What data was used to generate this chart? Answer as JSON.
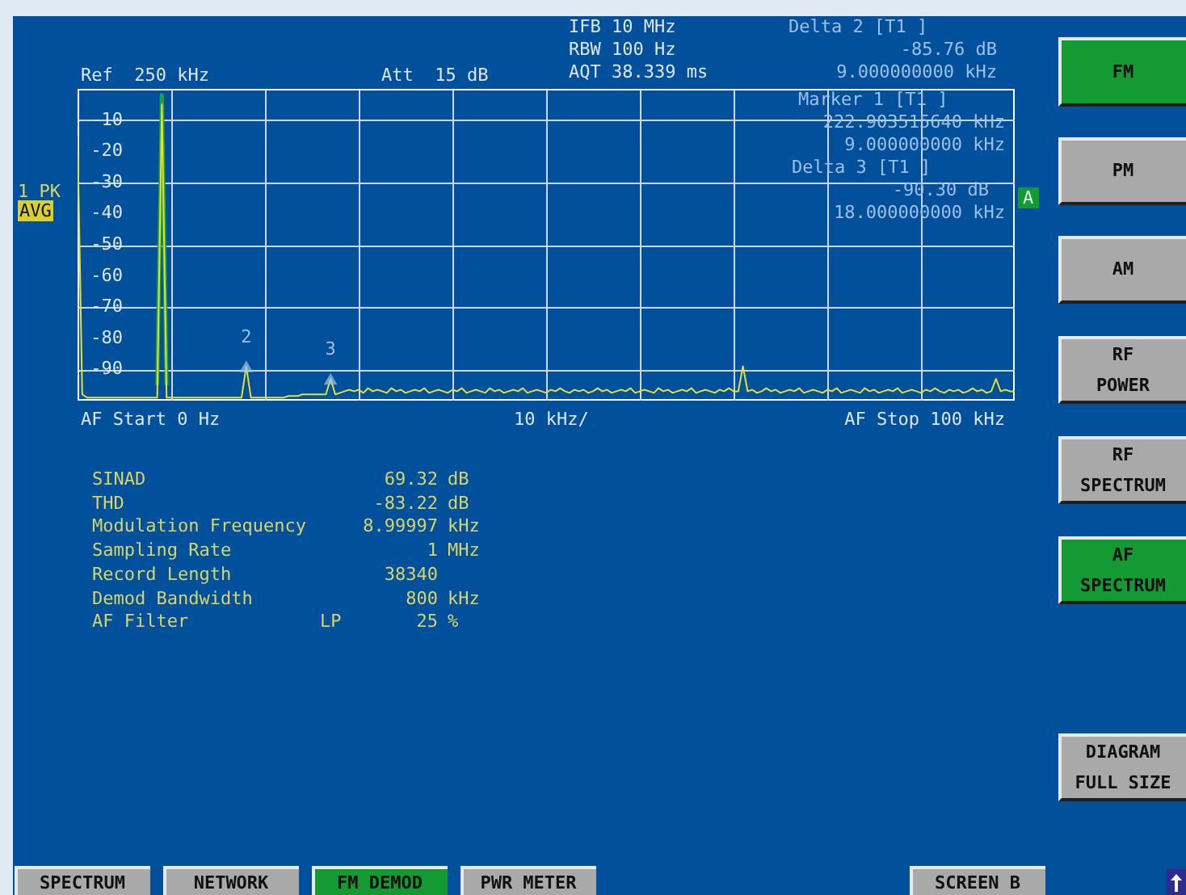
{
  "chart_data": {
    "type": "line",
    "categories": [
      null,
      null,
      null,
      null,
      null,
      null,
      null,
      null,
      null,
      null,
      null,
      null,
      null,
      null,
      null,
      null,
      null,
      null,
      null,
      null,
      null,
      null,
      null,
      null,
      null,
      null,
      null,
      null,
      null,
      null,
      null,
      null,
      null,
      null,
      null,
      null,
      null,
      null,
      null,
      null,
      null,
      null,
      null,
      null,
      null,
      null,
      null,
      null,
      null,
      null,
      null,
      null,
      null,
      null,
      null,
      null,
      null,
      null,
      null,
      null,
      null,
      null,
      null,
      null,
      null,
      null,
      null,
      null,
      null,
      null,
      null,
      null,
      null,
      null,
      null,
      null,
      null,
      null,
      null,
      null,
      null,
      null,
      null,
      null,
      null,
      null,
      null,
      null,
      null,
      null,
      null,
      null,
      null,
      null,
      null,
      null,
      null,
      null,
      null,
      null,
      null,
      null,
      null,
      null,
      null,
      null,
      null,
      null,
      null,
      null,
      null,
      null,
      null,
      null,
      null,
      null,
      null,
      null,
      null,
      null,
      null,
      null,
      null,
      null,
      null,
      null,
      null,
      null,
      null,
      null,
      null,
      null,
      null,
      null,
      null,
      null,
      null,
      null,
      null,
      null,
      null,
      null,
      null,
      null,
      null,
      null,
      null,
      null,
      null,
      null,
      null,
      null,
      null,
      null,
      null,
      null,
      null,
      null,
      null,
      null,
      null,
      null,
      null,
      null,
      null,
      null,
      null,
      null,
      null,
      null,
      null,
      null,
      null,
      null,
      null,
      null,
      null,
      null,
      null,
      null,
      null,
      null,
      null,
      null,
      null,
      null,
      null,
      null,
      null,
      null,
      null,
      null,
      null,
      null,
      null,
      null,
      null,
      null,
      null,
      null,
      null
    ],
    "ylim": [
      -100,
      0
    ],
    "yticks": [
      -10,
      -20,
      -30,
      -40,
      -50,
      -60,
      -70,
      -80,
      -90
    ],
    "grid": true,
    "tick_labels": "y",
    "line_style": "solid",
    "marker": "none",
    "series": [
      {
        "color": "#20a040",
        "values": [
          null,
          null,
          null,
          null,
          null,
          null,
          null,
          null,
          null,
          null,
          null,
          null,
          null,
          null,
          null,
          null,
          null,
          -95,
          -2,
          -95,
          null,
          null,
          null,
          null,
          null,
          null,
          null,
          null,
          null,
          null,
          null,
          null,
          null,
          null,
          null,
          null,
          null,
          null,
          null,
          null,
          null,
          null,
          null,
          null,
          null,
          null,
          null,
          null,
          null,
          null,
          null,
          null,
          null,
          null,
          null,
          null,
          null,
          null,
          null,
          null,
          null,
          null,
          null,
          null,
          null,
          null,
          null,
          null,
          null,
          null,
          null,
          null,
          null,
          null,
          null,
          null,
          null,
          null,
          null,
          null,
          null,
          null,
          null,
          null,
          null,
          null,
          null,
          null,
          null,
          null,
          null,
          null,
          null,
          null,
          null,
          null,
          null,
          null,
          null,
          null,
          null,
          null,
          null,
          null,
          null,
          null,
          null,
          null,
          null,
          null,
          null,
          null,
          null,
          null,
          null,
          null,
          null,
          null,
          null,
          null,
          null,
          null,
          null,
          null,
          null,
          null,
          null,
          null,
          null,
          null,
          null,
          null,
          null,
          null,
          null,
          null,
          null,
          null,
          null,
          null,
          null,
          null,
          null,
          null,
          null,
          null,
          null,
          null,
          null,
          null,
          null,
          null,
          null,
          null,
          null,
          null,
          null,
          null,
          null,
          null,
          null,
          null,
          null,
          null,
          null,
          null,
          null,
          null,
          null,
          null,
          null,
          null,
          null,
          null,
          null,
          null,
          null,
          null,
          null,
          null,
          null,
          null,
          null,
          null,
          null,
          null,
          null,
          null,
          null,
          null,
          null,
          null,
          null,
          null,
          null,
          null,
          null,
          null,
          null,
          null,
          null
        ]
      },
      {
        "color": "#e8e030",
        "values": [
          -15,
          -98,
          -99,
          -99,
          -99,
          -99,
          -99,
          -99,
          -99,
          -99,
          -99,
          -99,
          -99,
          -99,
          -99,
          -99,
          -99,
          -99,
          -5,
          -99,
          -99,
          -99,
          -99,
          -99,
          -99,
          -99,
          -99,
          -99,
          -99,
          -99,
          -99,
          -99,
          -99,
          -99,
          -99,
          -99,
          -89,
          -99,
          -99,
          -99,
          -99,
          -99,
          -99,
          -99,
          -99,
          -98.5,
          -98.5,
          -98.5,
          -98,
          -98,
          -98,
          -98,
          -98,
          -98,
          -93,
          -98,
          -97.5,
          -97,
          -96.5,
          -97,
          -96.5,
          -97.5,
          -96,
          -97,
          -96.5,
          -97,
          -97.5,
          -96,
          -97,
          -96.5,
          -97.5,
          -97,
          -96.5,
          -97,
          -96,
          -97.5,
          -97,
          -96.5,
          -97,
          -97.5,
          -96.5,
          -97,
          -96,
          -97.5,
          -97,
          -96.5,
          -97,
          -97.5,
          -96,
          -97,
          -96.5,
          -97.5,
          -97,
          -96.5,
          -97,
          -96,
          -97.5,
          -97,
          -96.5,
          -97,
          -97.5,
          -96.5,
          -97,
          -96,
          -97,
          -97.5,
          -96.5,
          -97,
          -96.5,
          -97.5,
          -97,
          -96,
          -97,
          -96.5,
          -97.5,
          -97,
          -96.5,
          -97,
          -96,
          -97.5,
          -97,
          -96.5,
          -97,
          -97.5,
          -96,
          -97,
          -96.5,
          -97.5,
          -97,
          -96.5,
          -97,
          -96,
          -97.5,
          -97,
          -96.5,
          -97,
          -97.5,
          -96.5,
          -97,
          -96,
          -97,
          -97,
          -89,
          -97,
          -96.5,
          -97.5,
          -97,
          -96,
          -97,
          -96.5,
          -97.5,
          -97,
          -96.5,
          -97,
          -96,
          -97.5,
          -97,
          -96.5,
          -97,
          -97.5,
          -96.5,
          -97,
          -96,
          -97.5,
          -97,
          -96.5,
          -97,
          -97.5,
          -96,
          -97,
          -96.5,
          -97.5,
          -97,
          -96.5,
          -97,
          -96,
          -97.5,
          -97,
          -96.5,
          -97,
          -97.5,
          -96.5,
          -97,
          -96,
          -97,
          -97.5,
          -96.5,
          -97,
          -96.5,
          -97.5,
          -97,
          -96,
          -97,
          -96.5,
          -97.5,
          -97,
          -93,
          -97,
          -96.5,
          -97,
          -97
        ]
      },
      {
        "type": "scatter",
        "name": "2",
        "marker": "triangle",
        "color": "#9ec0e8",
        "values": [
          null,
          null,
          null,
          null,
          null,
          null,
          null,
          null,
          null,
          null,
          null,
          null,
          null,
          null,
          null,
          null,
          null,
          null,
          null,
          null,
          null,
          null,
          null,
          null,
          null,
          null,
          null,
          null,
          null,
          null,
          null,
          null,
          null,
          null,
          null,
          null,
          -89,
          null,
          null,
          null,
          null,
          null,
          null,
          null,
          null,
          null,
          null,
          null,
          null,
          null,
          null,
          null,
          null,
          null,
          null,
          null,
          null,
          null,
          null,
          null,
          null,
          null,
          null,
          null,
          null,
          null,
          null,
          null,
          null,
          null,
          null,
          null,
          null,
          null,
          null,
          null,
          null,
          null,
          null,
          null,
          null,
          null,
          null,
          null,
          null,
          null,
          null,
          null,
          null,
          null,
          null,
          null,
          null,
          null,
          null,
          null,
          null,
          null,
          null,
          null,
          null,
          null,
          null,
          null,
          null,
          null,
          null,
          null,
          null,
          null,
          null,
          null,
          null,
          null,
          null,
          null,
          null,
          null,
          null,
          null,
          null,
          null,
          null,
          null,
          null,
          null,
          null,
          null,
          null,
          null,
          null,
          null,
          null,
          null,
          null,
          null,
          null,
          null,
          null,
          null,
          null,
          null,
          null,
          null,
          null,
          null,
          null,
          null,
          null,
          null,
          null,
          null,
          null,
          null,
          null,
          null,
          null,
          null,
          null,
          null,
          null,
          null,
          null,
          null,
          null,
          null,
          null,
          null,
          null,
          null,
          null,
          null,
          null,
          null,
          null,
          null,
          null,
          null,
          null,
          null,
          null,
          null,
          null,
          null,
          null,
          null,
          null,
          null,
          null,
          null,
          null,
          null,
          null,
          null,
          null,
          null,
          null,
          null,
          null,
          null,
          null
        ]
      },
      {
        "type": "scatter",
        "name": "3",
        "marker": "triangle",
        "color": "#9ec0e8",
        "values": [
          null,
          null,
          null,
          null,
          null,
          null,
          null,
          null,
          null,
          null,
          null,
          null,
          null,
          null,
          null,
          null,
          null,
          null,
          null,
          null,
          null,
          null,
          null,
          null,
          null,
          null,
          null,
          null,
          null,
          null,
          null,
          null,
          null,
          null,
          null,
          null,
          null,
          null,
          null,
          null,
          null,
          null,
          null,
          null,
          null,
          null,
          null,
          null,
          null,
          null,
          null,
          null,
          null,
          null,
          -93,
          null,
          null,
          null,
          null,
          null,
          null,
          null,
          null,
          null,
          null,
          null,
          null,
          null,
          null,
          null,
          null,
          null,
          null,
          null,
          null,
          null,
          null,
          null,
          null,
          null,
          null,
          null,
          null,
          null,
          null,
          null,
          null,
          null,
          null,
          null,
          null,
          null,
          null,
          null,
          null,
          null,
          null,
          null,
          null,
          null,
          null,
          null,
          null,
          null,
          null,
          null,
          null,
          null,
          null,
          null,
          null,
          null,
          null,
          null,
          null,
          null,
          null,
          null,
          null,
          null,
          null,
          null,
          null,
          null,
          null,
          null,
          null,
          null,
          null,
          null,
          null,
          null,
          null,
          null,
          null,
          null,
          null,
          null,
          null,
          null,
          null,
          null,
          null,
          null,
          null,
          null,
          null,
          null,
          null,
          null,
          null,
          null,
          null,
          null,
          null,
          null,
          null,
          null,
          null,
          null,
          null,
          null,
          null,
          null,
          null,
          null,
          null,
          null,
          null,
          null,
          null,
          null,
          null,
          null,
          null,
          null,
          null,
          null,
          null,
          null,
          null,
          null,
          null,
          null,
          null,
          null,
          null,
          null,
          null,
          null,
          null,
          null,
          null,
          null,
          null,
          null,
          null,
          null,
          null,
          null,
          null
        ]
      }
    ],
    "annotations": [
      "Ref  250 kHz",
      "Att  15 dB",
      "IFB 10 MHz",
      "RBW 100 Hz",
      "AQT 38.339 ms",
      "Delta 2 [T1 ]",
      "-85.76 dB",
      "9.000000000 kHz",
      "Marker 1 [T1 ]",
      "222.903515640 kHz",
      "9.000000000 kHz",
      "Delta 3 [T1 ]",
      "-90.30 dB",
      "18.000000000 kHz",
      "1 PK",
      "AVG",
      "A",
      "AF Start 0 Hz",
      "10 kHz/",
      "AF Stop 100 kHz",
      "SINAD",
      "THD",
      "Modulation Frequency",
      "Sampling Rate",
      "Record Length",
      "Demod Bandwidth",
      "AF Filter",
      "69.32",
      "-83.22",
      "8.99997",
      "1",
      "38340",
      "800",
      "25",
      "dB",
      "dB",
      "kHz",
      "MHz",
      "kHz",
      "%",
      "LP",
      "FM",
      "PM",
      "AM",
      "RF",
      "POWER",
      "RF",
      "SPECTRUM",
      "AF",
      "SPECTRUM",
      "DIAGRAM",
      "FULL SIZE",
      "SPECTRUM",
      "NETWORK",
      "FM DEMOD",
      "PWR METER",
      "SCREEN B"
    ]
  }
}
